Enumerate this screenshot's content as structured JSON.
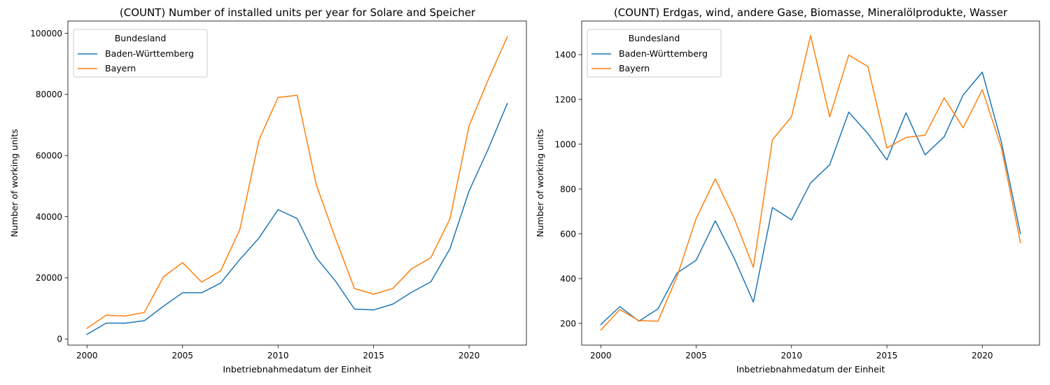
{
  "chart_data": [
    {
      "type": "line",
      "title": "(COUNT) Number of installed units per year for Solare and Speicher",
      "xlabel": "Inbetriebnahmedatum der Einheit",
      "ylabel": "Number of working units",
      "xlim": [
        1999,
        2023
      ],
      "ylim": [
        -2000,
        104000
      ],
      "xticks": [
        2000,
        2005,
        2010,
        2015,
        2020
      ],
      "yticks": [
        0,
        20000,
        40000,
        60000,
        80000,
        100000
      ],
      "legend": {
        "title": "Bundesland",
        "placement": "upper-left"
      },
      "x": [
        2000,
        2001,
        2002,
        2003,
        2004,
        2005,
        2006,
        2007,
        2008,
        2009,
        2010,
        2011,
        2012,
        2013,
        2014,
        2015,
        2016,
        2017,
        2018,
        2019,
        2020,
        2021,
        2022
      ],
      "series": [
        {
          "name": "Baden-Württemberg",
          "color": "#1f77b4",
          "values": [
            1500,
            5200,
            5200,
            6000,
            10700,
            15100,
            15100,
            18300,
            26000,
            33000,
            42300,
            39400,
            26600,
            19000,
            9800,
            9500,
            11400,
            15300,
            18700,
            29500,
            48400,
            62100,
            77000
          ]
        },
        {
          "name": "Bayern",
          "color": "#ff7f0e",
          "values": [
            3500,
            7800,
            7500,
            8700,
            20300,
            25000,
            18600,
            22300,
            35800,
            65000,
            79000,
            79700,
            50500,
            33000,
            16500,
            14700,
            16500,
            23000,
            26600,
            39300,
            69700,
            84800,
            98800
          ]
        }
      ]
    },
    {
      "type": "line",
      "title": "(COUNT) Erdgas, wind, andere Gase, Biomasse, Mineralölprodukte, Wasser",
      "xlabel": "Inbetriebnahmedatum der Einheit",
      "ylabel": "Number of working units",
      "xlim": [
        1999,
        2023
      ],
      "ylim": [
        103,
        1550
      ],
      "xticks": [
        2000,
        2005,
        2010,
        2015,
        2020
      ],
      "yticks": [
        200,
        400,
        600,
        800,
        1000,
        1200,
        1400
      ],
      "legend": {
        "title": "Bundesland",
        "placement": "upper-left"
      },
      "x": [
        2000,
        2001,
        2002,
        2003,
        2004,
        2005,
        2006,
        2007,
        2008,
        2009,
        2010,
        2011,
        2012,
        2013,
        2014,
        2015,
        2016,
        2017,
        2018,
        2019,
        2020,
        2021,
        2022
      ],
      "series": [
        {
          "name": "Baden-Württemberg",
          "color": "#1f77b4",
          "values": [
            195,
            275,
            210,
            265,
            425,
            482,
            658,
            490,
            295,
            717,
            662,
            827,
            908,
            1143,
            1048,
            930,
            1140,
            952,
            1033,
            1220,
            1322,
            1010,
            600
          ]
        },
        {
          "name": "Bayern",
          "color": "#ff7f0e",
          "values": [
            170,
            262,
            212,
            210,
            410,
            668,
            845,
            668,
            450,
            1020,
            1123,
            1485,
            1122,
            1398,
            1347,
            983,
            1030,
            1040,
            1207,
            1073,
            1243,
            985,
            560
          ]
        }
      ]
    }
  ]
}
